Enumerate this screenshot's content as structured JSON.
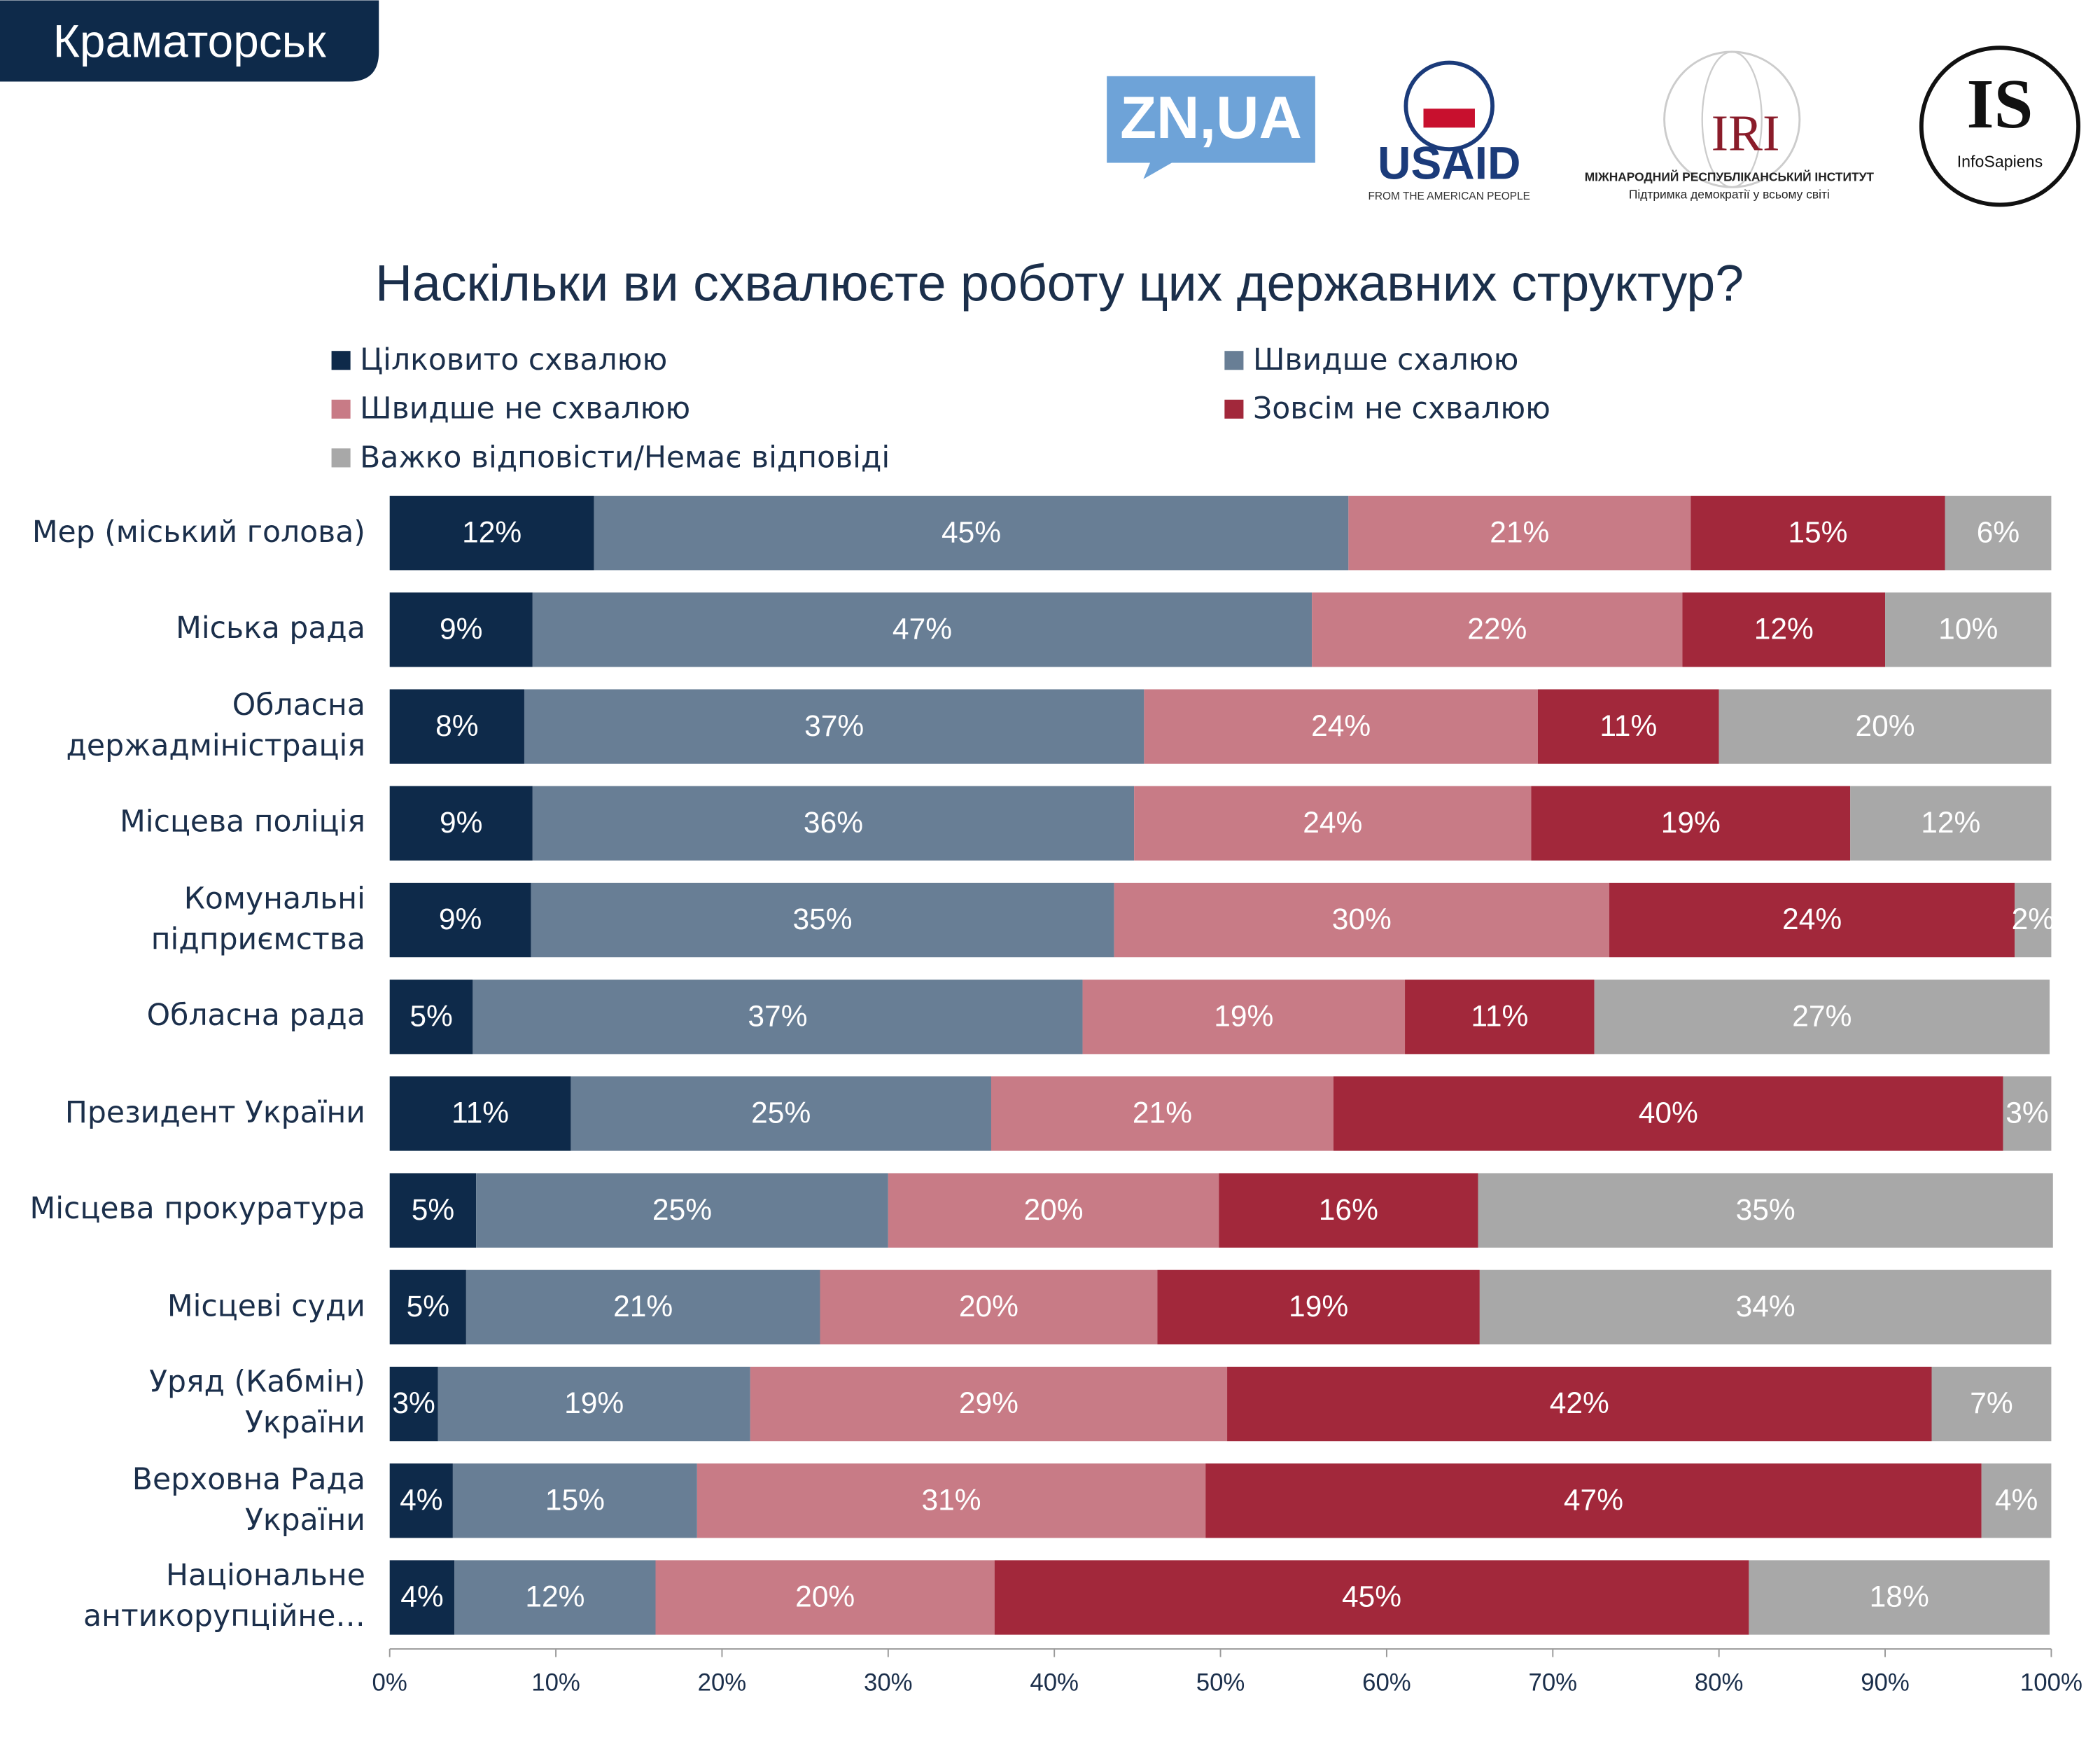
{
  "header": {
    "city": "Краматорськ",
    "logos": [
      "ZN,UA",
      "USAID",
      "FROM THE AMERICAN PEOPLE",
      "IRI",
      "МІЖНАРОДНИЙ РЕСПУБЛІКАНСЬКИЙ ІНСТИТУТ",
      "Підтримка демократії у всьому світі",
      "IS",
      "InfoSapiens"
    ]
  },
  "chart_data": {
    "type": "stacked_barh",
    "title": "Наскільки ви схвалюєте роботу цих державних структур?",
    "categories": [
      "Мер (міський голова)",
      "Міська рада",
      "Обласна держадміністрація",
      "Місцева поліція",
      "Комунальні підприємства",
      "Обласна рада",
      "Президент України",
      "Місцева прокуратура",
      "Місцеві суди",
      "Уряд (Кабмін) України",
      "Верховна Рада України",
      "Національне антикорупційне…"
    ],
    "series": [
      {
        "name": "Цілковито схвалюю",
        "color": "#0e2a4a",
        "values": [
          12.3,
          8.6,
          8.1,
          8.6,
          8.5,
          5.0,
          10.9,
          5.2,
          4.6,
          2.9,
          3.8,
          3.9
        ],
        "value_labels": [
          "12%",
          "9%",
          "8%",
          "9%",
          "9%",
          "5%",
          "11%",
          "5%",
          "5%",
          "3%",
          "4%",
          "4%"
        ]
      },
      {
        "name": "Швидше схалюю",
        "color": "#687e95",
        "values": [
          45.4,
          46.9,
          37.3,
          36.2,
          35.1,
          36.7,
          25.3,
          24.8,
          21.3,
          18.8,
          14.7,
          12.1
        ],
        "value_labels": [
          "45%",
          "47%",
          "37%",
          "36%",
          "35%",
          "37%",
          "25%",
          "25%",
          "21%",
          "19%",
          "15%",
          "12%"
        ]
      },
      {
        "name": "Швидше не схвалюю",
        "color": "#c87b86",
        "values": [
          20.6,
          22.3,
          23.7,
          23.9,
          29.8,
          19.4,
          20.6,
          19.9,
          20.3,
          28.7,
          30.6,
          20.4
        ],
        "value_labels": [
          "21%",
          "22%",
          "24%",
          "24%",
          "30%",
          "19%",
          "21%",
          "20%",
          "20%",
          "29%",
          "31%",
          "20%"
        ]
      },
      {
        "name": "Зовсім не схвалюю",
        "color": "#a2283b",
        "values": [
          15.3,
          12.2,
          10.9,
          19.2,
          24.4,
          11.4,
          40.3,
          15.6,
          19.4,
          42.4,
          46.7,
          45.4
        ],
        "value_labels": [
          "15%",
          "12%",
          "11%",
          "19%",
          "24%",
          "11%",
          "40%",
          "16%",
          "19%",
          "42%",
          "47%",
          "45%"
        ]
      },
      {
        "name": "Важко відповісти/Немає відповіді",
        "color": "#a8a8a8",
        "values": [
          6.4,
          10.0,
          20.0,
          12.1,
          2.2,
          27.4,
          2.9,
          34.6,
          34.4,
          7.2,
          4.2,
          18.1
        ],
        "value_labels": [
          "6%",
          "10%",
          "20%",
          "12%",
          "2%",
          "27%",
          "3%",
          "35%",
          "34%",
          "7%",
          "4%",
          "18%"
        ]
      }
    ],
    "xlim": [
      0,
      100
    ],
    "xticks": [
      {
        "value": 0,
        "label": "0%"
      },
      {
        "value": 10,
        "label": "10%"
      },
      {
        "value": 20,
        "label": "20%"
      },
      {
        "value": 30,
        "label": "30%"
      },
      {
        "value": 40,
        "label": "40%"
      },
      {
        "value": 50,
        "label": "50%"
      },
      {
        "value": 60,
        "label": "60%"
      },
      {
        "value": 70,
        "label": "70%"
      },
      {
        "value": 80,
        "label": "80%"
      },
      {
        "value": 90,
        "label": "90%"
      },
      {
        "value": 100,
        "label": "100%"
      }
    ],
    "legend": "top"
  }
}
